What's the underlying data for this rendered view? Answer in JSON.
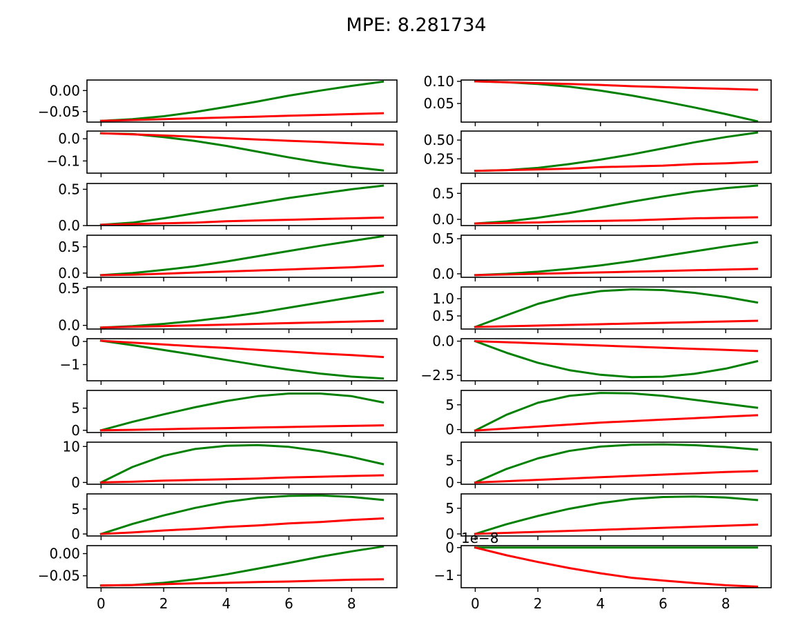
{
  "title": "MPE: 8.281734",
  "colors": {
    "series_a": "#008000",
    "series_b": "#ff0000"
  },
  "chart_data": [
    {
      "type": "line",
      "x": [
        0,
        1,
        2,
        3,
        4,
        5,
        6,
        7,
        8,
        9
      ],
      "xticks": [
        0,
        2,
        4,
        6,
        8
      ],
      "ylim": [
        -0.075,
        0.025
      ],
      "yticks": [
        0.0,
        -0.05
      ],
      "ytick_labels": [
        "0.00",
        "−0.05"
      ],
      "offset_label": "",
      "series": [
        {
          "color": "#008000",
          "values": [
            -0.072,
            -0.068,
            -0.061,
            -0.051,
            -0.039,
            -0.026,
            -0.012,
            0.0,
            0.011,
            0.021
          ]
        },
        {
          "color": "#ff0000",
          "values": [
            -0.072,
            -0.07,
            -0.068,
            -0.066,
            -0.064,
            -0.062,
            -0.06,
            -0.058,
            -0.056,
            -0.054
          ]
        }
      ]
    },
    {
      "type": "line",
      "x": [
        0,
        1,
        2,
        3,
        4,
        5,
        6,
        7,
        8,
        9
      ],
      "xticks": [
        0,
        2,
        4,
        6,
        8
      ],
      "ylim": [
        0.008,
        0.103
      ],
      "yticks": [
        0.1,
        0.05
      ],
      "ytick_labels": [
        "0.10",
        "0.05"
      ],
      "offset_label": "",
      "series": [
        {
          "color": "#008000",
          "values": [
            0.1,
            0.098,
            0.094,
            0.088,
            0.079,
            0.068,
            0.055,
            0.041,
            0.026,
            0.01
          ]
        },
        {
          "color": "#ff0000",
          "values": [
            0.1,
            0.098,
            0.096,
            0.094,
            0.092,
            0.089,
            0.087,
            0.085,
            0.083,
            0.081
          ]
        }
      ]
    },
    {
      "type": "line",
      "x": [
        0,
        1,
        2,
        3,
        4,
        5,
        6,
        7,
        8,
        9
      ],
      "xticks": [
        0,
        2,
        4,
        6,
        8
      ],
      "ylim": [
        -0.155,
        0.035
      ],
      "yticks": [
        0.0,
        -0.1
      ],
      "ytick_labels": [
        "0.0",
        "−0.1"
      ],
      "offset_label": "",
      "series": [
        {
          "color": "#008000",
          "values": [
            0.025,
            0.022,
            0.008,
            -0.01,
            -0.032,
            -0.058,
            -0.084,
            -0.107,
            -0.127,
            -0.143
          ]
        },
        {
          "color": "#ff0000",
          "values": [
            0.025,
            0.02,
            0.015,
            0.009,
            0.003,
            -0.003,
            -0.009,
            -0.014,
            -0.02,
            -0.026
          ]
        }
      ]
    },
    {
      "type": "line",
      "x": [
        0,
        1,
        2,
        3,
        4,
        5,
        6,
        7,
        8,
        9
      ],
      "xticks": [
        0,
        2,
        4,
        6,
        8
      ],
      "ylim": [
        0.06,
        0.62
      ],
      "yticks": [
        0.5,
        0.25
      ],
      "ytick_labels": [
        "0.50",
        "0.25"
      ],
      "offset_label": "",
      "series": [
        {
          "color": "#008000",
          "values": [
            0.09,
            0.1,
            0.13,
            0.18,
            0.24,
            0.31,
            0.39,
            0.47,
            0.54,
            0.6
          ]
        },
        {
          "color": "#ff0000",
          "values": [
            0.09,
            0.1,
            0.11,
            0.12,
            0.14,
            0.15,
            0.16,
            0.18,
            0.19,
            0.21
          ]
        }
      ]
    },
    {
      "type": "line",
      "x": [
        0,
        1,
        2,
        3,
        4,
        5,
        6,
        7,
        8,
        9
      ],
      "xticks": [
        0,
        2,
        4,
        6,
        8
      ],
      "ylim": [
        0.0,
        0.58
      ],
      "yticks": [
        0.5,
        0.0
      ],
      "ytick_labels": [
        "0.5",
        "0.0"
      ],
      "offset_label": "",
      "series": [
        {
          "color": "#008000",
          "values": [
            0.01,
            0.04,
            0.1,
            0.17,
            0.24,
            0.31,
            0.38,
            0.44,
            0.5,
            0.55
          ]
        },
        {
          "color": "#ff0000",
          "values": [
            0.01,
            0.02,
            0.03,
            0.04,
            0.06,
            0.07,
            0.08,
            0.09,
            0.1,
            0.11
          ]
        }
      ]
    },
    {
      "type": "line",
      "x": [
        0,
        1,
        2,
        3,
        4,
        5,
        6,
        7,
        8,
        9
      ],
      "xticks": [
        0,
        2,
        4,
        6,
        8
      ],
      "ylim": [
        -0.12,
        0.69
      ],
      "yticks": [
        0.5,
        0.0
      ],
      "ytick_labels": [
        "0.5",
        "0.0"
      ],
      "offset_label": "",
      "series": [
        {
          "color": "#008000",
          "values": [
            -0.08,
            -0.04,
            0.03,
            0.12,
            0.23,
            0.34,
            0.44,
            0.53,
            0.6,
            0.65
          ]
        },
        {
          "color": "#ff0000",
          "values": [
            -0.08,
            -0.07,
            -0.06,
            -0.04,
            -0.03,
            -0.02,
            0.0,
            0.02,
            0.03,
            0.04
          ]
        }
      ]
    },
    {
      "type": "line",
      "x": [
        0,
        1,
        2,
        3,
        4,
        5,
        6,
        7,
        8,
        9
      ],
      "xticks": [
        0,
        2,
        4,
        6,
        8
      ],
      "ylim": [
        -0.08,
        0.72
      ],
      "yticks": [
        0.5,
        0.0
      ],
      "ytick_labels": [
        "0.5",
        "0.0"
      ],
      "offset_label": "",
      "series": [
        {
          "color": "#008000",
          "values": [
            -0.04,
            0.0,
            0.06,
            0.13,
            0.22,
            0.32,
            0.42,
            0.52,
            0.61,
            0.7
          ]
        },
        {
          "color": "#ff0000",
          "values": [
            -0.04,
            -0.03,
            -0.01,
            0.01,
            0.03,
            0.05,
            0.07,
            0.09,
            0.11,
            0.14
          ]
        }
      ]
    },
    {
      "type": "line",
      "x": [
        0,
        1,
        2,
        3,
        4,
        5,
        6,
        7,
        8,
        9
      ],
      "xticks": [
        0,
        2,
        4,
        6,
        8
      ],
      "ylim": [
        -0.05,
        0.55
      ],
      "yticks": [
        0.5,
        0.0
      ],
      "ytick_labels": [
        "0.5",
        "0.0"
      ],
      "offset_label": "",
      "series": [
        {
          "color": "#008000",
          "values": [
            -0.02,
            0.0,
            0.03,
            0.07,
            0.12,
            0.18,
            0.25,
            0.32,
            0.39,
            0.45
          ]
        },
        {
          "color": "#ff0000",
          "values": [
            -0.02,
            -0.01,
            0.0,
            0.01,
            0.02,
            0.03,
            0.04,
            0.05,
            0.06,
            0.07
          ]
        }
      ]
    },
    {
      "type": "line",
      "x": [
        0,
        1,
        2,
        3,
        4,
        5,
        6,
        7,
        8,
        9
      ],
      "xticks": [
        0,
        2,
        4,
        6,
        8
      ],
      "ylim": [
        -0.05,
        0.52
      ],
      "yticks": [
        0.5,
        0.0
      ],
      "ytick_labels": [
        "0.5",
        "0.0"
      ],
      "offset_label": "",
      "series": [
        {
          "color": "#008000",
          "values": [
            -0.03,
            -0.01,
            0.02,
            0.06,
            0.11,
            0.17,
            0.24,
            0.31,
            0.38,
            0.45
          ]
        },
        {
          "color": "#ff0000",
          "values": [
            -0.03,
            -0.02,
            -0.01,
            0.0,
            0.01,
            0.02,
            0.03,
            0.04,
            0.05,
            0.06
          ]
        }
      ]
    },
    {
      "type": "line",
      "x": [
        0,
        1,
        2,
        3,
        4,
        5,
        6,
        7,
        8,
        9
      ],
      "xticks": [
        0,
        2,
        4,
        6,
        8
      ],
      "ylim": [
        0.12,
        1.34
      ],
      "yticks": [
        1.0,
        0.5
      ],
      "ytick_labels": [
        "1.0",
        "0.5"
      ],
      "offset_label": "",
      "series": [
        {
          "color": "#008000",
          "values": [
            0.18,
            0.52,
            0.85,
            1.08,
            1.22,
            1.27,
            1.25,
            1.17,
            1.05,
            0.89
          ]
        },
        {
          "color": "#ff0000",
          "values": [
            0.18,
            0.2,
            0.22,
            0.24,
            0.26,
            0.28,
            0.3,
            0.32,
            0.34,
            0.36
          ]
        }
      ]
    },
    {
      "type": "line",
      "x": [
        0,
        1,
        2,
        3,
        4,
        5,
        6,
        7,
        8,
        9
      ],
      "xticks": [
        0,
        2,
        4,
        6,
        8
      ],
      "ylim": [
        -1.7,
        0.12
      ],
      "yticks": [
        0,
        -1
      ],
      "ytick_labels": [
        "0",
        "−1"
      ],
      "offset_label": "",
      "series": [
        {
          "color": "#008000",
          "values": [
            0.03,
            -0.16,
            -0.37,
            -0.58,
            -0.8,
            -1.02,
            -1.22,
            -1.39,
            -1.52,
            -1.6
          ]
        },
        {
          "color": "#ff0000",
          "values": [
            0.03,
            -0.05,
            -0.13,
            -0.21,
            -0.28,
            -0.36,
            -0.44,
            -0.52,
            -0.59,
            -0.67
          ]
        }
      ]
    },
    {
      "type": "line",
      "x": [
        0,
        1,
        2,
        3,
        4,
        5,
        6,
        7,
        8,
        9
      ],
      "xticks": [
        0,
        2,
        4,
        6,
        8
      ],
      "ylim": [
        -2.9,
        0.18
      ],
      "yticks": [
        0.0,
        -2.5
      ],
      "ytick_labels": [
        "0.0",
        "−2.5"
      ],
      "offset_label": "",
      "series": [
        {
          "color": "#008000",
          "values": [
            0.0,
            -0.85,
            -1.58,
            -2.12,
            -2.46,
            -2.63,
            -2.6,
            -2.39,
            -2.01,
            -1.47
          ]
        },
        {
          "color": "#ff0000",
          "values": [
            0.0,
            -0.08,
            -0.16,
            -0.24,
            -0.32,
            -0.4,
            -0.48,
            -0.56,
            -0.64,
            -0.72
          ]
        }
      ]
    },
    {
      "type": "line",
      "x": [
        0,
        1,
        2,
        3,
        4,
        5,
        6,
        7,
        8,
        9
      ],
      "xticks": [
        0,
        2,
        4,
        6,
        8
      ],
      "ylim": [
        -0.5,
        9.0
      ],
      "yticks": [
        5,
        0
      ],
      "ytick_labels": [
        "5",
        "0"
      ],
      "offset_label": "",
      "series": [
        {
          "color": "#008000",
          "values": [
            0.0,
            1.9,
            3.6,
            5.2,
            6.6,
            7.7,
            8.3,
            8.3,
            7.7,
            6.3
          ]
        },
        {
          "color": "#ff0000",
          "values": [
            0.0,
            0.1,
            0.25,
            0.38,
            0.5,
            0.63,
            0.75,
            0.88,
            1.0,
            1.1
          ]
        }
      ]
    },
    {
      "type": "line",
      "x": [
        0,
        1,
        2,
        3,
        4,
        5,
        6,
        7,
        8,
        9
      ],
      "xticks": [
        0,
        2,
        4,
        6,
        8
      ],
      "ylim": [
        -0.6,
        7.9
      ],
      "yticks": [
        5,
        0
      ],
      "ytick_labels": [
        "5",
        "0"
      ],
      "offset_label": "",
      "series": [
        {
          "color": "#008000",
          "values": [
            -0.2,
            3.0,
            5.4,
            6.8,
            7.4,
            7.3,
            6.8,
            6.0,
            5.2,
            4.4
          ]
        },
        {
          "color": "#ff0000",
          "values": [
            -0.2,
            0.2,
            0.6,
            1.0,
            1.4,
            1.7,
            2.0,
            2.3,
            2.6,
            2.9
          ]
        }
      ]
    },
    {
      "type": "line",
      "x": [
        0,
        1,
        2,
        3,
        4,
        5,
        6,
        7,
        8,
        9
      ],
      "xticks": [
        0,
        2,
        4,
        6,
        8
      ],
      "ylim": [
        -0.5,
        11.2
      ],
      "yticks": [
        10,
        0
      ],
      "ytick_labels": [
        "10",
        "0"
      ],
      "offset_label": "",
      "series": [
        {
          "color": "#008000",
          "values": [
            0.0,
            4.3,
            7.4,
            9.3,
            10.2,
            10.4,
            9.9,
            8.7,
            7.1,
            5.1
          ]
        },
        {
          "color": "#ff0000",
          "values": [
            0.0,
            0.2,
            0.5,
            0.7,
            0.9,
            1.1,
            1.4,
            1.6,
            1.8,
            2.0
          ]
        }
      ]
    },
    {
      "type": "line",
      "x": [
        0,
        1,
        2,
        3,
        4,
        5,
        6,
        7,
        8,
        9
      ],
      "xticks": [
        0,
        2,
        4,
        6,
        8
      ],
      "ylim": [
        -0.4,
        9.2
      ],
      "yticks": [
        5,
        0
      ],
      "ytick_labels": [
        "5",
        "0"
      ],
      "offset_label": "",
      "series": [
        {
          "color": "#008000",
          "values": [
            0.0,
            3.1,
            5.5,
            7.2,
            8.2,
            8.6,
            8.7,
            8.5,
            8.1,
            7.5
          ]
        },
        {
          "color": "#ff0000",
          "values": [
            0.0,
            0.3,
            0.6,
            0.9,
            1.2,
            1.5,
            1.8,
            2.1,
            2.4,
            2.6
          ]
        }
      ]
    },
    {
      "type": "line",
      "x": [
        0,
        1,
        2,
        3,
        4,
        5,
        6,
        7,
        8,
        9
      ],
      "xticks": [
        0,
        2,
        4,
        6,
        8
      ],
      "ylim": [
        -0.4,
        8.0
      ],
      "yticks": [
        5,
        0
      ],
      "ytick_labels": [
        "5",
        "0"
      ],
      "offset_label": "",
      "series": [
        {
          "color": "#008000",
          "values": [
            0.0,
            2.0,
            3.7,
            5.2,
            6.4,
            7.2,
            7.6,
            7.7,
            7.4,
            6.8
          ]
        },
        {
          "color": "#ff0000",
          "values": [
            0.0,
            0.3,
            0.7,
            1.0,
            1.4,
            1.7,
            2.1,
            2.4,
            2.8,
            3.1
          ]
        }
      ]
    },
    {
      "type": "line",
      "x": [
        0,
        1,
        2,
        3,
        4,
        5,
        6,
        7,
        8,
        9
      ],
      "xticks": [
        0,
        2,
        4,
        6,
        8
      ],
      "ylim": [
        -0.4,
        7.8
      ],
      "yticks": [
        5,
        0
      ],
      "ytick_labels": [
        "5",
        "0"
      ],
      "offset_label": "",
      "series": [
        {
          "color": "#008000",
          "values": [
            0.0,
            1.9,
            3.5,
            4.9,
            6.0,
            6.8,
            7.2,
            7.3,
            7.1,
            6.6
          ]
        },
        {
          "color": "#ff0000",
          "values": [
            0.0,
            0.2,
            0.4,
            0.6,
            0.8,
            1.0,
            1.2,
            1.4,
            1.6,
            1.8
          ]
        }
      ]
    },
    {
      "type": "line",
      "x": [
        0,
        1,
        2,
        3,
        4,
        5,
        6,
        7,
        8,
        9
      ],
      "xticks": [
        0,
        2,
        4,
        6,
        8
      ],
      "ylim": [
        -0.077,
        0.018
      ],
      "yticks": [
        0.0,
        -0.05
      ],
      "ytick_labels": [
        "0.00",
        "−0.05"
      ],
      "offset_label": "",
      "series": [
        {
          "color": "#008000",
          "values": [
            -0.072,
            -0.071,
            -0.066,
            -0.058,
            -0.047,
            -0.034,
            -0.021,
            -0.007,
            0.005,
            0.016
          ]
        },
        {
          "color": "#ff0000",
          "values": [
            -0.072,
            -0.071,
            -0.069,
            -0.067,
            -0.066,
            -0.064,
            -0.063,
            -0.061,
            -0.059,
            -0.058
          ]
        }
      ]
    },
    {
      "type": "line",
      "x": [
        0,
        1,
        2,
        3,
        4,
        5,
        6,
        7,
        8,
        9
      ],
      "xticks": [
        0,
        2,
        4,
        6,
        8
      ],
      "ylim": [
        -1.45,
        0.07
      ],
      "yticks": [
        0,
        -1
      ],
      "ytick_labels": [
        "0",
        "−1"
      ],
      "offset_label": "1e−8",
      "series": [
        {
          "color": "#008000",
          "values": [
            0,
            0,
            0,
            0,
            0,
            0,
            0,
            0,
            0,
            0
          ]
        },
        {
          "color": "#ff0000",
          "values": [
            0.0,
            -0.28,
            -0.52,
            -0.74,
            -0.93,
            -1.09,
            -1.19,
            -1.28,
            -1.36,
            -1.41
          ]
        }
      ]
    }
  ]
}
